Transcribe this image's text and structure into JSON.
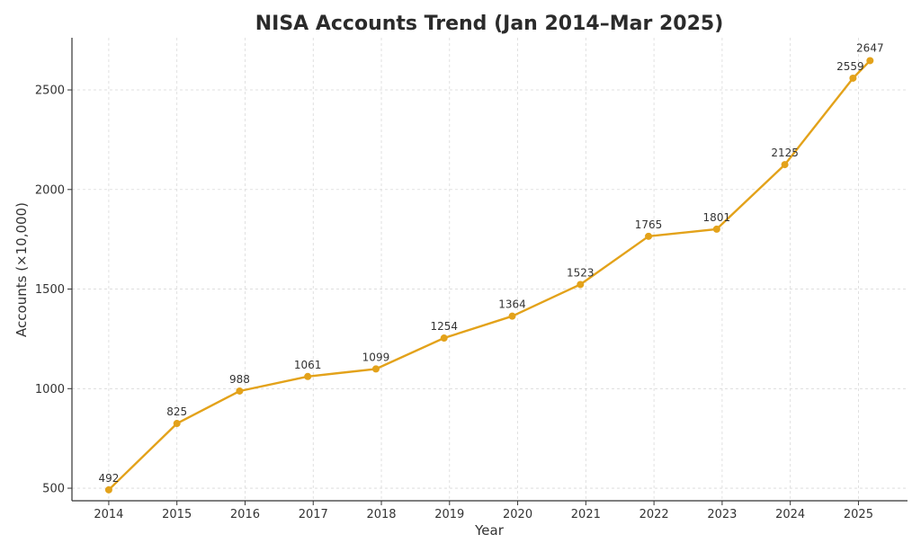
{
  "chart_data": {
    "type": "line",
    "title": "NISA Accounts Trend (Jan 2014–Mar 2025)",
    "xlabel": "Year",
    "ylabel": "Accounts (×10,000)",
    "x_ticks": [
      "2014",
      "2015",
      "2016",
      "2017",
      "2018",
      "2019",
      "2020",
      "2021",
      "2022",
      "2023",
      "2024",
      "2025"
    ],
    "y_ticks": [
      500,
      1000,
      1500,
      2000,
      2500
    ],
    "xlim": [
      2013.46,
      2025.72
    ],
    "ylim": [
      437,
      2762
    ],
    "grid": true,
    "color": "#e3a21a",
    "series": [
      {
        "x": [
          2014.0,
          2015.0,
          2015.92,
          2016.92,
          2017.92,
          2018.92,
          2019.92,
          2020.92,
          2021.92,
          2022.92,
          2023.92,
          2024.92,
          2025.17
        ],
        "values": [
          492,
          825,
          988,
          1061,
          1099,
          1254,
          1364,
          1523,
          1765,
          1801,
          2125,
          2559,
          2647
        ],
        "labels": [
          "492",
          "825",
          "988",
          "1061",
          "1099",
          "1254",
          "1364",
          "1523",
          "1765",
          "1801",
          "2125",
          "2559",
          "2647"
        ]
      }
    ]
  }
}
